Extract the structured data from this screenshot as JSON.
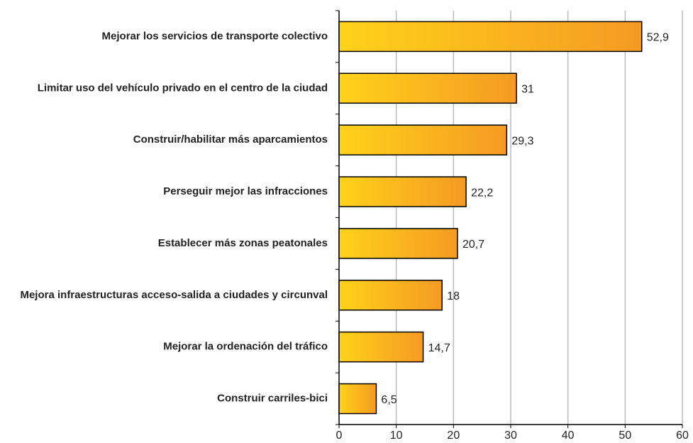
{
  "chart_data": {
    "type": "bar",
    "orientation": "horizontal",
    "categories": [
      "Mejorar los servicios de transporte colectivo",
      "Limitar uso del vehículo privado en el centro de la ciudad",
      "Construir/habilitar más aparcamientos",
      "Perseguir mejor las infracciones",
      "Establecer más zonas peatonales",
      "Mejora infraestructuras acceso-salida a ciudades y circunval",
      "Mejorar la ordenación del tráfico",
      "Construir carriles-bici"
    ],
    "values": [
      52.9,
      31,
      29.3,
      22.2,
      20.7,
      18,
      14.7,
      6.5
    ],
    "value_labels": [
      "52,9",
      "31",
      "29,3",
      "22,2",
      "20,7",
      "18",
      "14,7",
      "6,5"
    ],
    "color": "#f59a23",
    "xlim": [
      0,
      60
    ],
    "xticks": [
      0,
      10,
      20,
      30,
      40,
      50,
      60
    ],
    "grid": true
  }
}
